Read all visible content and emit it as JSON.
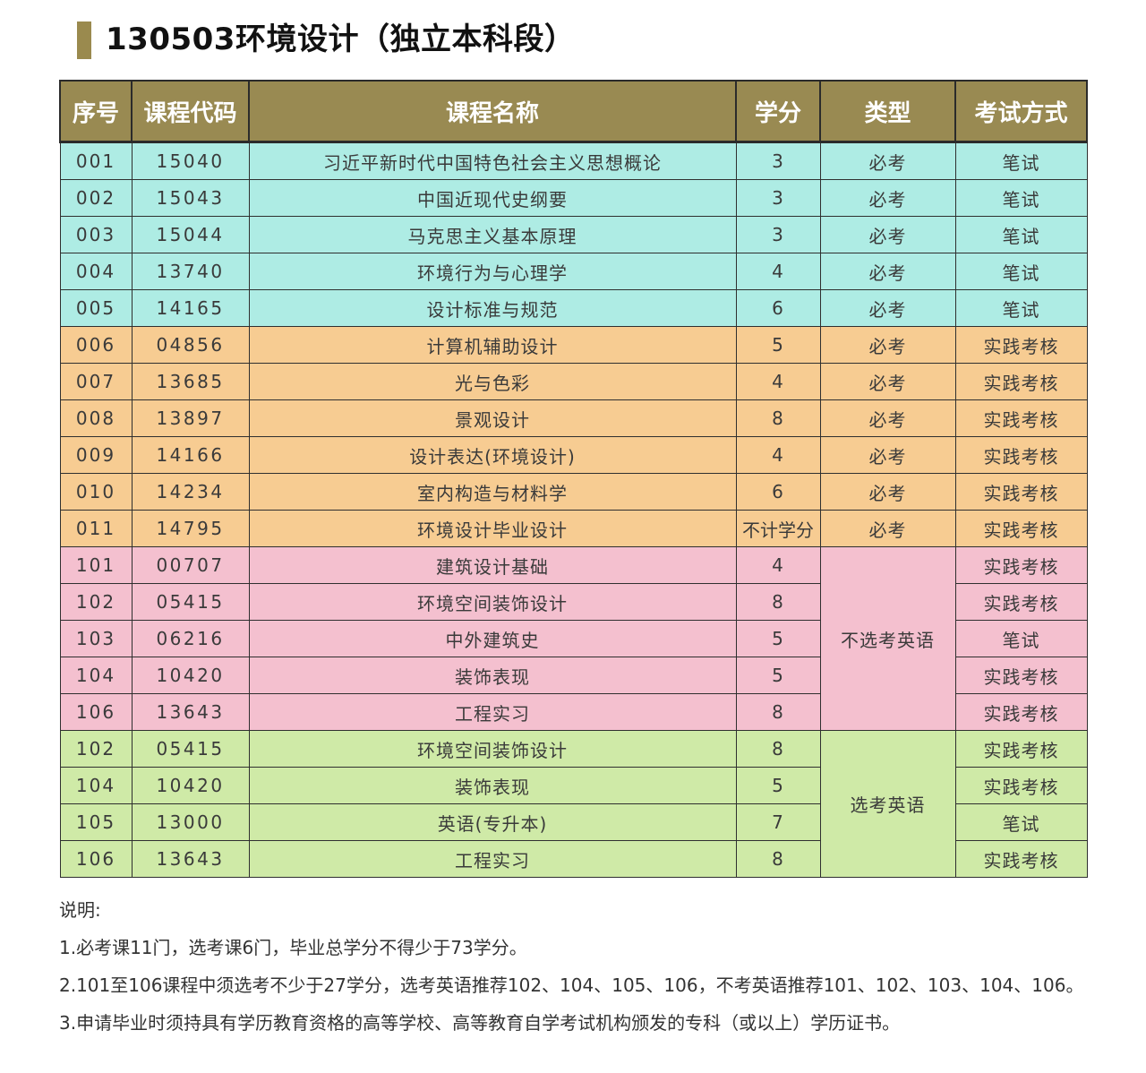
{
  "title": "130503环境设计（独立本科段）",
  "headers": [
    "序号",
    "课程代码",
    "课程名称",
    "学分",
    "类型",
    "考试方式"
  ],
  "required_type": "必考",
  "group_no_english": "不选考英语",
  "group_english": "选考英语",
  "rows": [
    {
      "seq": "001",
      "code": "15040",
      "name": "习近平新时代中国特色社会主义思想概论",
      "credit": "3",
      "type": "必考",
      "exam": "笔试"
    },
    {
      "seq": "002",
      "code": "15043",
      "name": "中国近现代史纲要",
      "credit": "3",
      "type": "必考",
      "exam": "笔试"
    },
    {
      "seq": "003",
      "code": "15044",
      "name": "马克思主义基本原理",
      "credit": "3",
      "type": "必考",
      "exam": "笔试"
    },
    {
      "seq": "004",
      "code": "13740",
      "name": "环境行为与心理学",
      "credit": "4",
      "type": "必考",
      "exam": "笔试"
    },
    {
      "seq": "005",
      "code": "14165",
      "name": "设计标准与规范",
      "credit": "6",
      "type": "必考",
      "exam": "笔试"
    },
    {
      "seq": "006",
      "code": "04856",
      "name": "计算机辅助设计",
      "credit": "5",
      "type": "必考",
      "exam": "实践考核"
    },
    {
      "seq": "007",
      "code": "13685",
      "name": "光与色彩",
      "credit": "4",
      "type": "必考",
      "exam": "实践考核"
    },
    {
      "seq": "008",
      "code": "13897",
      "name": "景观设计",
      "credit": "8",
      "type": "必考",
      "exam": "实践考核"
    },
    {
      "seq": "009",
      "code": "14166",
      "name": "设计表达(环境设计)",
      "credit": "4",
      "type": "必考",
      "exam": "实践考核"
    },
    {
      "seq": "010",
      "code": "14234",
      "name": "室内构造与材料学",
      "credit": "6",
      "type": "必考",
      "exam": "实践考核"
    },
    {
      "seq": "011",
      "code": "14795",
      "name": "环境设计毕业设计",
      "credit": "不计学分",
      "type": "必考",
      "exam": "实践考核"
    },
    {
      "seq": "101",
      "code": "00707",
      "name": "建筑设计基础",
      "credit": "4",
      "exam": "实践考核"
    },
    {
      "seq": "102",
      "code": "05415",
      "name": "环境空间装饰设计",
      "credit": "8",
      "exam": "实践考核"
    },
    {
      "seq": "103",
      "code": "06216",
      "name": "中外建筑史",
      "credit": "5",
      "exam": "笔试"
    },
    {
      "seq": "104",
      "code": "10420",
      "name": "装饰表现",
      "credit": "5",
      "exam": "实践考核"
    },
    {
      "seq": "106",
      "code": "13643",
      "name": "工程实习",
      "credit": "8",
      "exam": "实践考核"
    },
    {
      "seq": "102",
      "code": "05415",
      "name": "环境空间装饰设计",
      "credit": "8",
      "exam": "实践考核"
    },
    {
      "seq": "104",
      "code": "10420",
      "name": "装饰表现",
      "credit": "5",
      "exam": "实践考核"
    },
    {
      "seq": "105",
      "code": "13000",
      "name": "英语(专升本)",
      "credit": "7",
      "exam": "笔试"
    },
    {
      "seq": "106",
      "code": "13643",
      "name": "工程实习",
      "credit": "8",
      "exam": "实践考核"
    }
  ],
  "notes": [
    "说明:",
    "1.必考课11门，选考课6门，毕业总学分不得少于73学分。",
    "2.101至106课程中须选考不少于27学分，选考英语推荐102、104、105、106，不考英语推荐101、102、103、104、106。",
    "3.申请毕业时须持具有学历教育资格的高等学校、高等教育自学考试机构颁发的专科（或以上）学历证书。"
  ]
}
